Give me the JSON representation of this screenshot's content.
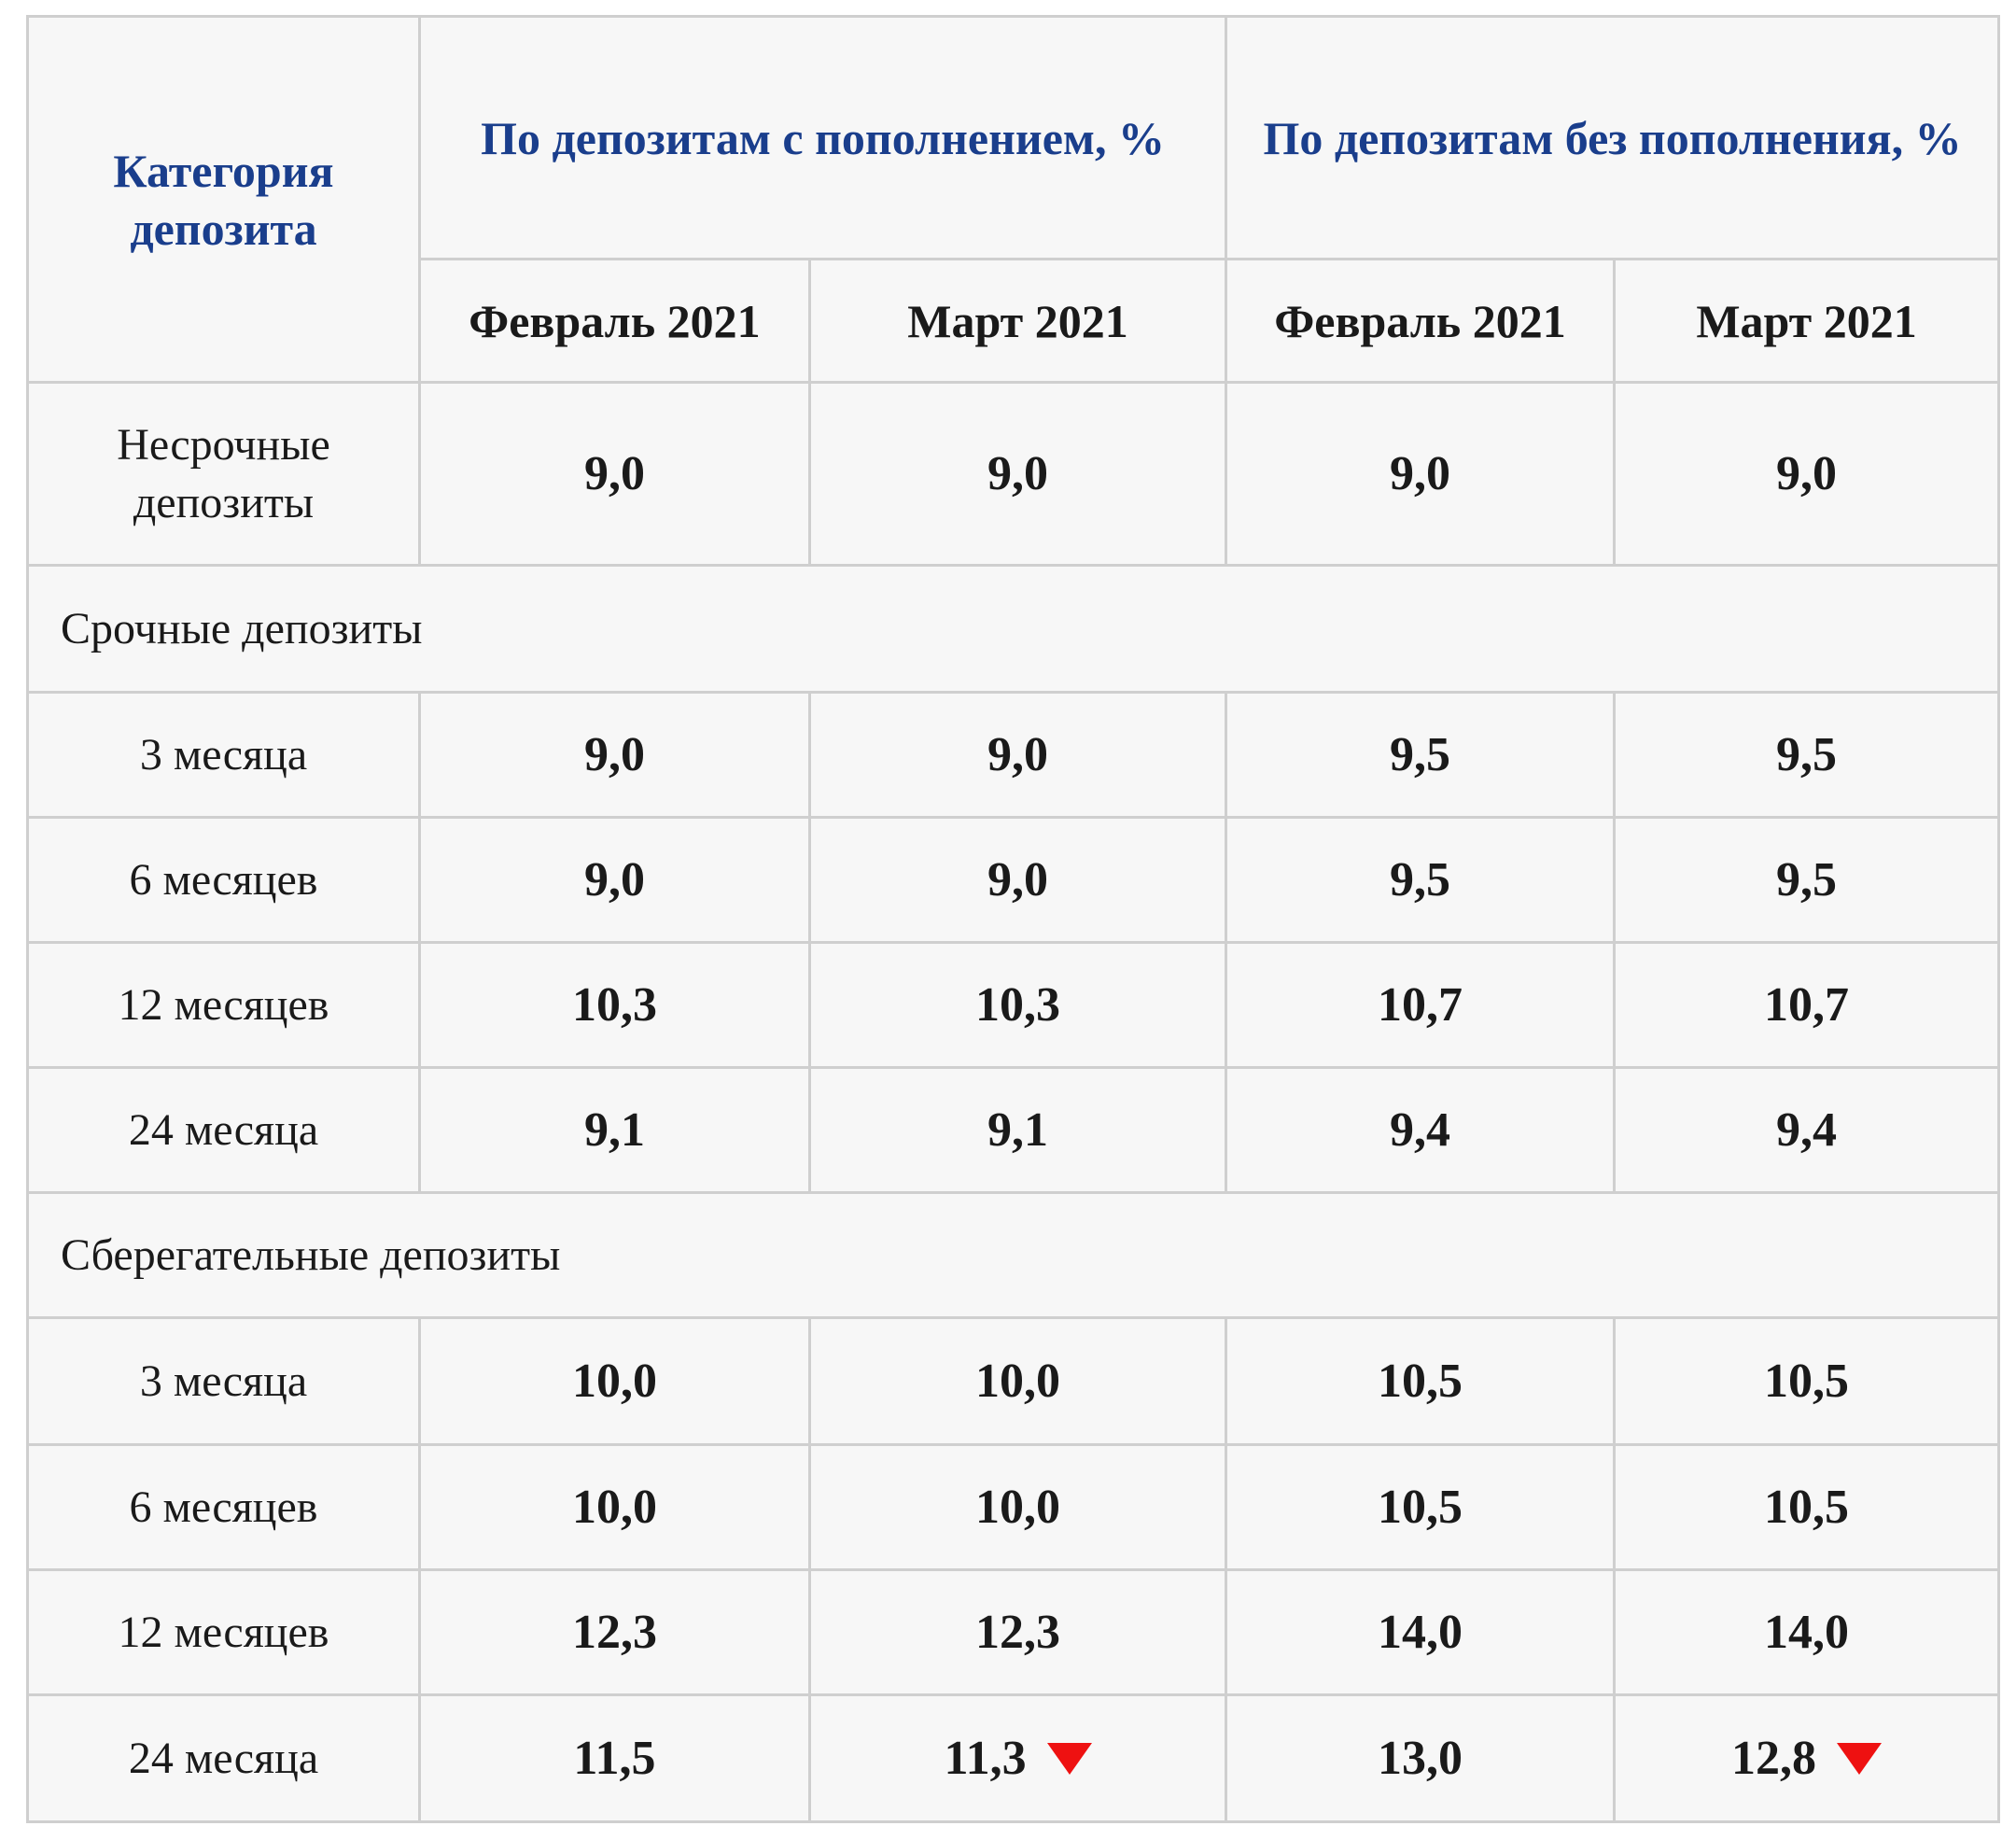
{
  "header": {
    "category": "Категория депозита",
    "group_with": "По депозитам с пополнением, %",
    "group_without": "По депозитам без пополнения, %",
    "months": [
      "Февраль 2021",
      "Март 2021",
      "Февраль 2021",
      "Март 2021"
    ]
  },
  "rows": {
    "demand": {
      "label": "Несрочные депозиты",
      "values": [
        "9,0",
        "9,0",
        "9,0",
        "9,0"
      ]
    },
    "term_section": "Срочные депозиты",
    "term": [
      {
        "label": "3 месяца",
        "values": [
          "9,0",
          "9,0",
          "9,5",
          "9,5"
        ]
      },
      {
        "label": "6 месяцев",
        "values": [
          "9,0",
          "9,0",
          "9,5",
          "9,5"
        ]
      },
      {
        "label": "12 месяцев",
        "values": [
          "10,3",
          "10,3",
          "10,7",
          "10,7"
        ]
      },
      {
        "label": "24 месяца",
        "values": [
          "9,1",
          "9,1",
          "9,4",
          "9,4"
        ]
      }
    ],
    "savings_section": "Сберегательные депозиты",
    "savings": [
      {
        "label": "3 месяца",
        "values": [
          "10,0",
          "10,0",
          "10,5",
          "10,5"
        ]
      },
      {
        "label": "6 месяцев",
        "values": [
          "10,0",
          "10,0",
          "10,5",
          "10,5"
        ]
      },
      {
        "label": "12 месяцев",
        "values": [
          "12,3",
          "12,3",
          "14,0",
          "14,0"
        ]
      },
      {
        "label": "24 месяца",
        "values": [
          "11,5",
          "11,3",
          "13,0",
          "12,8"
        ]
      }
    ]
  },
  "indicators": {
    "down_arrow_icon_color": "#ee1111"
  }
}
